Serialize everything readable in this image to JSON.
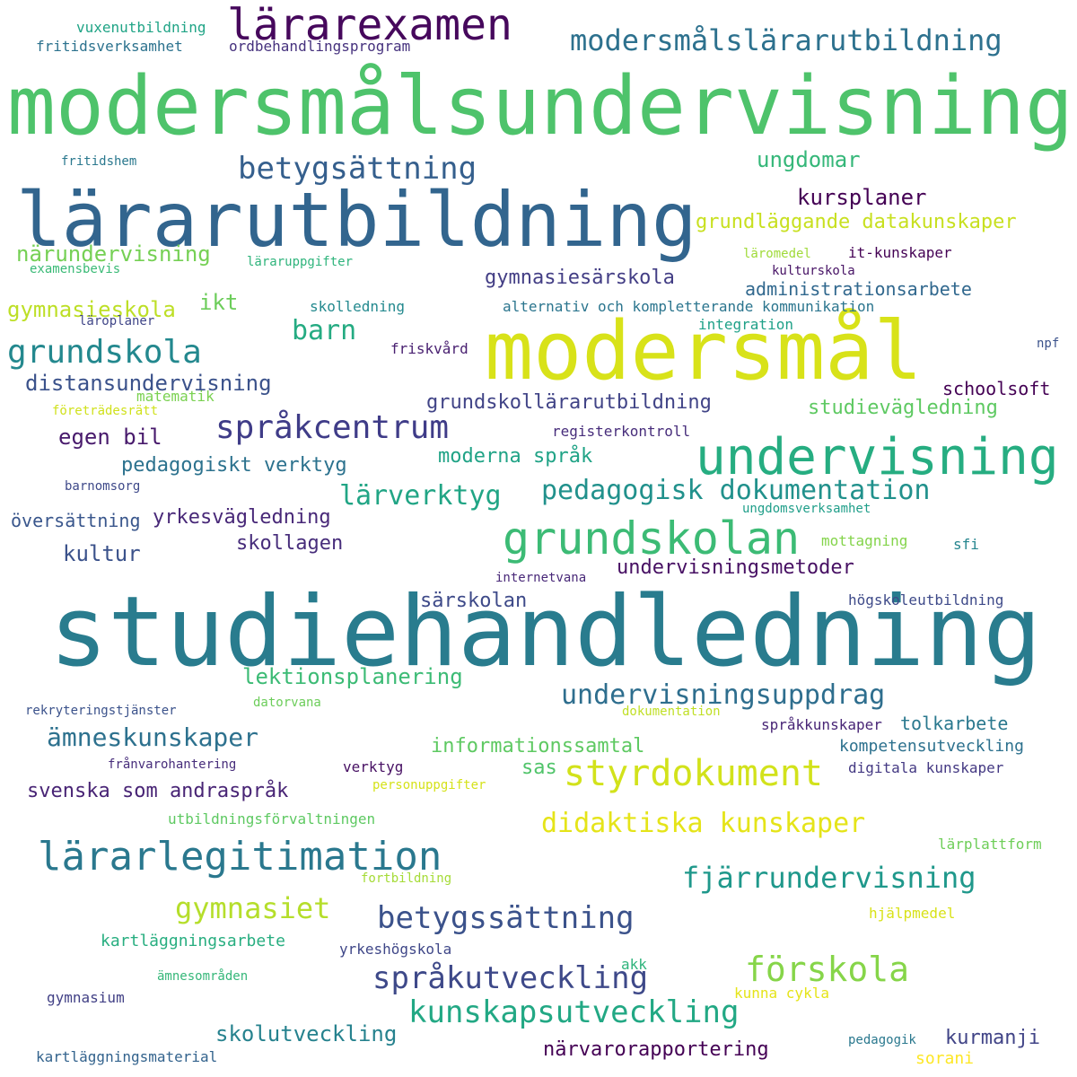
{
  "cloud": {
    "words": [
      {
        "text": "modersmålsundervisning",
        "color": "#4ec36b"
      },
      {
        "text": "studiehandledning",
        "color": "#297c8e"
      },
      {
        "text": "lärarutbildning",
        "color": "#32658e"
      },
      {
        "text": "modersmål",
        "color": "#d8e219"
      },
      {
        "text": "lärarexamen",
        "color": "#46085c"
      },
      {
        "text": "undervisning",
        "color": "#26ad81"
      },
      {
        "text": "grundskolan",
        "color": "#3cbb75"
      },
      {
        "text": "styrdokument",
        "color": "#d2e21b"
      },
      {
        "text": "lärarlegitimation",
        "color": "#2a788e"
      },
      {
        "text": "modersmålslärarutbildning",
        "color": "#2d718e"
      },
      {
        "text": "betygsättning",
        "color": "#355f8d"
      },
      {
        "text": "grundskola",
        "color": "#23888e"
      },
      {
        "text": "språkcentrum",
        "color": "#3f3c88"
      },
      {
        "text": "förskola",
        "color": "#86d549"
      },
      {
        "text": "betygssättning",
        "color": "#3b528b"
      },
      {
        "text": "språkutveckling",
        "color": "#3e4989"
      },
      {
        "text": "kunskapsutveckling",
        "color": "#22a884"
      },
      {
        "text": "pedagogisk dokumentation",
        "color": "#21918c"
      },
      {
        "text": "didaktiska kunskaper",
        "color": "#e5e419"
      },
      {
        "text": "fjärrundervisning",
        "color": "#1f988b"
      },
      {
        "text": "gymnasiet",
        "color": "#b5de2b"
      },
      {
        "text": "lärverktyg",
        "color": "#21a585"
      },
      {
        "text": "undervisningsuppdrag",
        "color": "#2e6e8e"
      },
      {
        "text": "ämneskunskaper",
        "color": "#2d718e"
      },
      {
        "text": "barn",
        "color": "#25ab82"
      },
      {
        "text": "ungdomar",
        "color": "#35b779"
      },
      {
        "text": "kursplaner",
        "color": "#440154"
      },
      {
        "text": "grundläggande datakunskaper",
        "color": "#c8e020"
      },
      {
        "text": "närundervisning",
        "color": "#75d054"
      },
      {
        "text": "gymnasieskola",
        "color": "#bddf26"
      },
      {
        "text": "ikt",
        "color": "#6ccd5a"
      },
      {
        "text": "gymnasiesärskola",
        "color": "#433e85"
      },
      {
        "text": "administrationsarbete",
        "color": "#31688e"
      },
      {
        "text": "distansundervisning",
        "color": "#3b528b"
      },
      {
        "text": "grundskollärarutbildning",
        "color": "#414487"
      },
      {
        "text": "schoolsoft",
        "color": "#440154"
      },
      {
        "text": "studievägledning",
        "color": "#5ec962"
      },
      {
        "text": "egen bil",
        "color": "#481a6c"
      },
      {
        "text": "moderna språk",
        "color": "#20a386"
      },
      {
        "text": "pedagogiskt verktyg",
        "color": "#2c728e"
      },
      {
        "text": "yrkesvägledning",
        "color": "#482878"
      },
      {
        "text": "skollagen",
        "color": "#472d7b"
      },
      {
        "text": "kultur",
        "color": "#3b528b"
      },
      {
        "text": "undervisningsmetoder",
        "color": "#471063"
      },
      {
        "text": "särskolan",
        "color": "#3e4a89"
      },
      {
        "text": "lektionsplanering",
        "color": "#3cbb75"
      },
      {
        "text": "informationssamtal",
        "color": "#5ec962"
      },
      {
        "text": "sas",
        "color": "#50c46a"
      },
      {
        "text": "tolkarbete",
        "color": "#2a788e"
      },
      {
        "text": "kompetensutveckling",
        "color": "#2d718e"
      },
      {
        "text": "svenska som andraspråk",
        "color": "#482475"
      },
      {
        "text": "kartläggningsarbete",
        "color": "#28ae80"
      },
      {
        "text": "skolutveckling",
        "color": "#26828e"
      },
      {
        "text": "närvarorapportering",
        "color": "#440154"
      },
      {
        "text": "kurmanji",
        "color": "#414487"
      },
      {
        "text": "vuxenutbildning",
        "color": "#20a486"
      },
      {
        "text": "fritidsverksamhet",
        "color": "#2c728e"
      },
      {
        "text": "ordbehandlingsprogram",
        "color": "#46327e"
      },
      {
        "text": "fritidshem",
        "color": "#2a788e"
      },
      {
        "text": "examensbevis",
        "color": "#3aba76"
      },
      {
        "text": "läraruppgifter",
        "color": "#2fb47c"
      },
      {
        "text": "läromedel",
        "color": "#a0da39"
      },
      {
        "text": "it-kunskaper",
        "color": "#440154"
      },
      {
        "text": "kulturskola",
        "color": "#471365"
      },
      {
        "text": "skolledning",
        "color": "#23898e"
      },
      {
        "text": "alternativ och kompletterande kommunikation",
        "color": "#2b758e"
      },
      {
        "text": "läroplaner",
        "color": "#404688"
      },
      {
        "text": "integration",
        "color": "#1fa188"
      },
      {
        "text": "npf",
        "color": "#3b528b"
      },
      {
        "text": "friskvård",
        "color": "#481f70"
      },
      {
        "text": "matematik",
        "color": "#7ad151"
      },
      {
        "text": "företrädesrätt",
        "color": "#d0e11c"
      },
      {
        "text": "registerkontroll",
        "color": "#472d7b"
      },
      {
        "text": "barnomsorg",
        "color": "#3e4989"
      },
      {
        "text": "ungdomsverksamhet",
        "color": "#1f9e89"
      },
      {
        "text": "översättning",
        "color": "#39568c"
      },
      {
        "text": "mottagning",
        "color": "#84d44b"
      },
      {
        "text": "sfi",
        "color": "#25858e"
      },
      {
        "text": "internetvana",
        "color": "#482878"
      },
      {
        "text": "högskoleutbildning",
        "color": "#3e4a89"
      },
      {
        "text": "rekryteringstjänster",
        "color": "#3b528b"
      },
      {
        "text": "datorvana",
        "color": "#6ccd5a"
      },
      {
        "text": "dokumentation",
        "color": "#c0df25"
      },
      {
        "text": "språkkunskaper",
        "color": "#482576"
      },
      {
        "text": "frånvarohantering",
        "color": "#472d7b"
      },
      {
        "text": "verktyg",
        "color": "#471063"
      },
      {
        "text": "digitala kunskaper",
        "color": "#443983"
      },
      {
        "text": "personuppgifter",
        "color": "#d5e21a"
      },
      {
        "text": "utbildningsförvaltningen",
        "color": "#5ec962"
      },
      {
        "text": "lärplattform",
        "color": "#6ece58"
      },
      {
        "text": "fortbildning",
        "color": "#a5db36"
      },
      {
        "text": "hjälpmedel",
        "color": "#d8e219"
      },
      {
        "text": "yrkeshögskola",
        "color": "#3f4788"
      },
      {
        "text": "akk",
        "color": "#2fb47c"
      },
      {
        "text": "ämnesområden",
        "color": "#35b779"
      },
      {
        "text": "kunna cykla",
        "color": "#e5e419"
      },
      {
        "text": "gymnasium",
        "color": "#424186"
      },
      {
        "text": "kartläggningsmaterial",
        "color": "#33638d"
      },
      {
        "text": "pedagogik",
        "color": "#2a788e"
      },
      {
        "text": "sorani",
        "color": "#fde725"
      }
    ]
  }
}
